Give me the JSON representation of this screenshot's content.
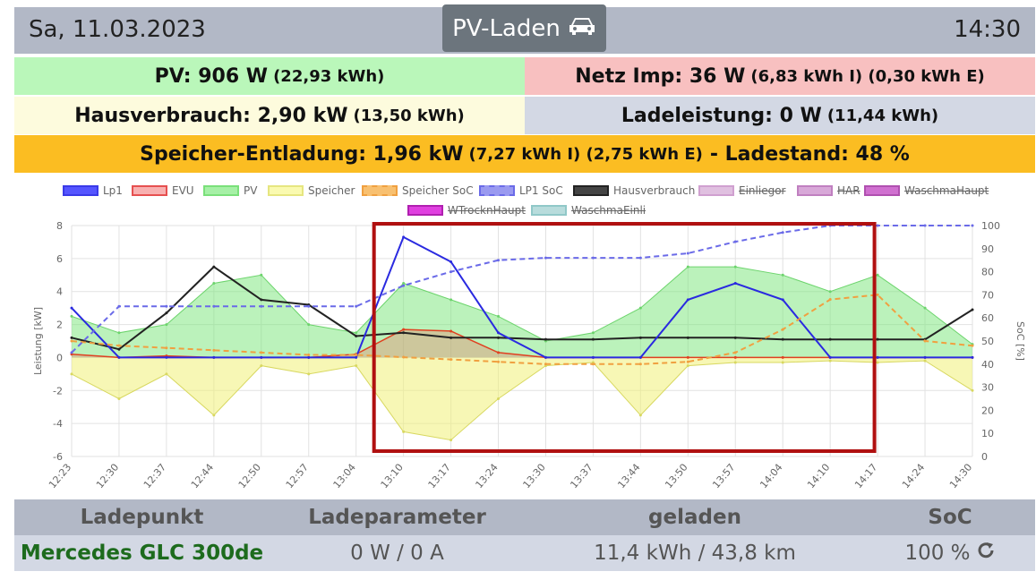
{
  "header": {
    "date": "Sa, 11.03.2023",
    "mode_label": "PV-Laden",
    "mode_icon": "car-icon",
    "time": "14:30"
  },
  "summary": {
    "pv_main": "PV: 906 W",
    "pv_sub": "(22,93 kWh)",
    "netz_main": "Netz Imp: 36 W",
    "netz_sub": "(6,83 kWh I) (0,30 kWh E)",
    "haus_main": "Hausverbrauch: 2,90 kW",
    "haus_sub": "(13,50 kWh)",
    "lade_main": "Ladeleistung: 0 W",
    "lade_sub": "(11,44 kWh)",
    "speicher_main": "Speicher-Entladung: 1,96 kW",
    "speicher_sub": "(7,27 kWh I) (2,75 kWh E)",
    "speicher_tail": "- Ladestand: 48 %"
  },
  "legend": [
    {
      "label": "Lp1",
      "color": "#3a3ae8",
      "fill": "#5555ff",
      "hidden": false
    },
    {
      "label": "EVU",
      "color": "#e65050",
      "fill": "#f8b0b0",
      "hidden": false
    },
    {
      "label": "PV",
      "color": "#7ae07a",
      "fill": "#a6f0a6",
      "hidden": false
    },
    {
      "label": "Speicher",
      "color": "#e6e680",
      "fill": "#fafab0",
      "hidden": false
    },
    {
      "label": "Speicher SoC",
      "color": "#f0a040",
      "fill": "#f8c070",
      "hidden": false
    },
    {
      "label": "LP1 SoC",
      "color": "#6a6ae8",
      "fill": "#9a9af0",
      "hidden": false
    },
    {
      "label": "Hausverbrauch",
      "color": "#222222",
      "fill": "#444444",
      "hidden": false
    },
    {
      "label": "Einliegor",
      "color": "#d0a0d0",
      "fill": "#e0c0e0",
      "hidden": true
    },
    {
      "label": "HAR",
      "color": "#c080c0",
      "fill": "#d8a8d8",
      "hidden": true
    },
    {
      "label": "WaschmaHaupt",
      "color": "#b050b0",
      "fill": "#d070d0",
      "hidden": true
    },
    {
      "label": "WTrocknHaupt",
      "color": "#b020b0",
      "fill": "#e040e0",
      "hidden": true
    },
    {
      "label": "WaschmaEinli",
      "color": "#90c8c8",
      "fill": "#b8dcdc",
      "hidden": true
    }
  ],
  "chart_data": {
    "type": "line",
    "ylabel": "Leistung [kW]",
    "y2label": "SoC [%]",
    "ylim": [
      -6,
      8
    ],
    "y2lim": [
      0,
      100
    ],
    "yticks": [
      "-6",
      "-4",
      "-2",
      "0",
      "2",
      "4",
      "6",
      "8"
    ],
    "y2ticks": [
      "0",
      "10",
      "20",
      "30",
      "40",
      "50",
      "60",
      "70",
      "80",
      "90",
      "100"
    ],
    "xticks": [
      "12:23",
      "12:30",
      "12:37",
      "12:44",
      "12:50",
      "12:57",
      "13:04",
      "13:10",
      "13:17",
      "13:24",
      "13:30",
      "13:37",
      "13:44",
      "13:50",
      "13:57",
      "14:04",
      "14:10",
      "14:17",
      "14:24",
      "14:30"
    ],
    "highlight": {
      "from": "13:04",
      "to": "14:14",
      "color": "#b01010"
    },
    "series": [
      {
        "name": "PV",
        "x": [
          "12:23",
          "12:30",
          "12:37",
          "12:44",
          "12:50",
          "12:57",
          "13:04",
          "13:10",
          "13:17",
          "13:24",
          "13:30",
          "13:37",
          "13:44",
          "13:50",
          "13:57",
          "14:04",
          "14:10",
          "14:17",
          "14:24",
          "14:30"
        ],
        "values": [
          2.5,
          1.5,
          2.0,
          4.5,
          5.0,
          2.0,
          1.5,
          4.5,
          3.5,
          2.5,
          1.0,
          1.5,
          3.0,
          5.5,
          5.5,
          5.0,
          4.0,
          5.0,
          3.0,
          0.8
        ]
      },
      {
        "name": "Hausverbrauch",
        "x": [
          "12:23",
          "12:30",
          "12:37",
          "12:44",
          "12:50",
          "12:57",
          "13:04",
          "13:10",
          "13:17",
          "13:24",
          "13:30",
          "13:37",
          "13:44",
          "13:50",
          "13:57",
          "14:04",
          "14:10",
          "14:17",
          "14:24",
          "14:30"
        ],
        "values": [
          1.2,
          0.5,
          2.7,
          5.5,
          3.5,
          3.2,
          1.3,
          1.5,
          1.2,
          1.2,
          1.1,
          1.1,
          1.2,
          1.2,
          1.2,
          1.1,
          1.1,
          1.1,
          1.1,
          2.9
        ]
      },
      {
        "name": "Lp1",
        "x": [
          "12:23",
          "12:30",
          "12:37",
          "12:44",
          "12:50",
          "12:57",
          "13:04",
          "13:10",
          "13:17",
          "13:24",
          "13:30",
          "13:37",
          "13:44",
          "13:50",
          "13:57",
          "14:04",
          "14:10",
          "14:17",
          "14:24",
          "14:30"
        ],
        "values": [
          3.0,
          0,
          0,
          0,
          0,
          0,
          0,
          7.3,
          5.8,
          1.5,
          0,
          0,
          0,
          3.5,
          4.5,
          3.5,
          0,
          0,
          0,
          0
        ]
      },
      {
        "name": "Speicher",
        "x": [
          "12:23",
          "12:30",
          "12:37",
          "12:44",
          "12:50",
          "12:57",
          "13:04",
          "13:10",
          "13:17",
          "13:24",
          "13:30",
          "13:37",
          "13:44",
          "13:50",
          "13:57",
          "14:04",
          "14:10",
          "14:17",
          "14:24",
          "14:30"
        ],
        "values": [
          -1.0,
          -2.5,
          -1.0,
          -3.5,
          -0.5,
          -1.0,
          -0.5,
          -4.5,
          -5.0,
          -2.5,
          -0.5,
          -0.3,
          -3.5,
          -0.5,
          -0.3,
          -0.3,
          -0.2,
          -0.3,
          -0.2,
          -2.0
        ]
      },
      {
        "name": "EVU",
        "x": [
          "12:23",
          "12:30",
          "12:37",
          "12:44",
          "12:50",
          "12:57",
          "13:04",
          "13:10",
          "13:17",
          "13:24",
          "13:30",
          "13:37",
          "13:44",
          "13:50",
          "13:57",
          "14:04",
          "14:10",
          "14:17",
          "14:24",
          "14:30"
        ],
        "values": [
          0.2,
          0,
          0.1,
          0,
          0,
          0,
          0.2,
          1.7,
          1.6,
          0.3,
          0,
          0,
          0,
          0,
          0,
          0,
          0,
          0,
          0,
          0
        ]
      },
      {
        "name": "Speicher SoC",
        "axis": "right",
        "x": [
          "12:23",
          "12:30",
          "12:37",
          "12:44",
          "12:50",
          "12:57",
          "13:04",
          "13:10",
          "13:17",
          "13:24",
          "13:30",
          "13:37",
          "13:44",
          "13:50",
          "13:57",
          "14:04",
          "14:10",
          "14:17",
          "14:24",
          "14:30"
        ],
        "values": [
          50,
          48,
          47,
          46,
          45,
          44,
          44,
          43,
          42,
          41,
          40,
          40,
          40,
          41,
          45,
          55,
          68,
          70,
          50,
          48
        ]
      },
      {
        "name": "LP1 SoC",
        "axis": "right",
        "x": [
          "12:23",
          "12:30",
          "12:37",
          "12:44",
          "12:50",
          "12:57",
          "13:04",
          "13:10",
          "13:17",
          "13:24",
          "13:30",
          "13:37",
          "13:44",
          "13:50",
          "13:57",
          "14:04",
          "14:10",
          "14:17",
          "14:24",
          "14:30"
        ],
        "values": [
          45,
          65,
          65,
          65,
          65,
          65,
          65,
          74,
          80,
          85,
          86,
          86,
          86,
          88,
          93,
          97,
          100,
          100,
          100,
          100
        ]
      }
    ]
  },
  "table": {
    "headers": [
      "Ladepunkt",
      "Ladeparameter",
      "geladen",
      "SoC"
    ],
    "row": {
      "ladepunkt": "Mercedes GLC 300de",
      "parameter": "0 W / 0 A",
      "geladen": "11,4 kWh / 43,8 km",
      "soc": "100 %",
      "refresh_icon": "refresh-icon"
    }
  }
}
